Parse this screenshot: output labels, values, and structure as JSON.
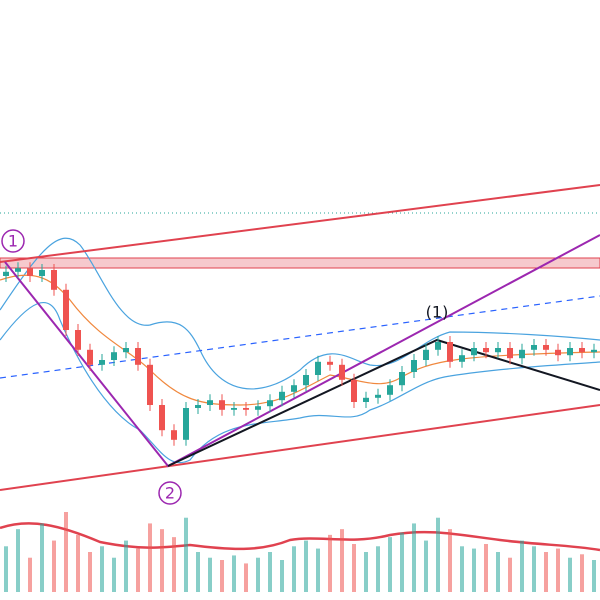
{
  "chart_data": {
    "type": "candlestick",
    "annotations": [
      "1",
      "2",
      "(1)"
    ],
    "up_color": "#26a69a",
    "down_color": "#ef5350",
    "ylim": [
      0,
      100
    ],
    "open": [
      54,
      54.7,
      55.3,
      54,
      55,
      51.7,
      45,
      41.7,
      39.2,
      40,
      41.3,
      42,
      39.2,
      32.5,
      28.3,
      26.7,
      32,
      32.5,
      33.3,
      31.7,
      32,
      31.7,
      32.3,
      33.3,
      34.7,
      35.8,
      37.5,
      39.7,
      39.2,
      36.7,
      33,
      33.7,
      34.2,
      35.8,
      38,
      40,
      41.7,
      43,
      39.7,
      40.8,
      42,
      41.3,
      42,
      40.3,
      41.7,
      42.5,
      41.7,
      40.8,
      42,
      41.3
    ],
    "high": [
      55.7,
      56.3,
      56.3,
      56,
      56,
      52.7,
      46,
      42.7,
      41,
      42.3,
      43,
      43,
      40.2,
      33.5,
      29.3,
      33,
      33.5,
      34.3,
      34.3,
      33,
      33,
      33.3,
      34.3,
      35.7,
      36.8,
      38.5,
      40.7,
      40.7,
      40.2,
      37.7,
      34.7,
      35.2,
      36.8,
      39,
      41,
      42.7,
      44,
      44,
      41.8,
      43,
      43,
      43,
      43,
      42.7,
      43.5,
      43.5,
      42.7,
      43,
      43,
      42.7
    ],
    "low": [
      53,
      53.7,
      53,
      53,
      50.7,
      44,
      40.7,
      38.2,
      38.2,
      39,
      40.3,
      38.2,
      31.5,
      27.3,
      25.7,
      25.7,
      31,
      31.5,
      30.7,
      30.7,
      30.7,
      30.7,
      31.3,
      32.3,
      33.7,
      34.8,
      36.5,
      38.2,
      35.7,
      32,
      32,
      32.7,
      33.2,
      34.8,
      37,
      39,
      40.7,
      38.7,
      38.7,
      39.8,
      40.3,
      40.3,
      39.3,
      39.3,
      40.7,
      40.7,
      39.8,
      39.8,
      40.3,
      40.3
    ],
    "close": [
      54.7,
      55.3,
      54,
      55,
      51.7,
      45,
      41.7,
      39.2,
      40,
      41.3,
      42,
      39.2,
      32.5,
      28.3,
      26.7,
      32,
      32.5,
      33.3,
      31.7,
      32,
      31.7,
      32.3,
      33.3,
      34.7,
      35.8,
      37.5,
      39.7,
      39.2,
      36.7,
      33,
      33.7,
      34.2,
      35.8,
      38,
      40,
      41.7,
      43,
      39.7,
      40.8,
      42,
      41.3,
      42,
      40.3,
      41.7,
      42.5,
      41.7,
      40.8,
      42,
      41.3,
      41.7
    ],
    "volume": [
      40,
      55,
      30,
      60,
      45,
      70,
      50,
      35,
      40,
      30,
      45,
      38,
      60,
      55,
      48,
      65,
      35,
      30,
      28,
      32,
      25,
      30,
      35,
      28,
      40,
      45,
      38,
      50,
      55,
      42,
      35,
      40,
      48,
      52,
      60,
      45,
      65,
      55,
      40,
      38,
      42,
      35,
      30,
      45,
      40,
      35,
      38,
      30,
      33,
      28
    ]
  }
}
